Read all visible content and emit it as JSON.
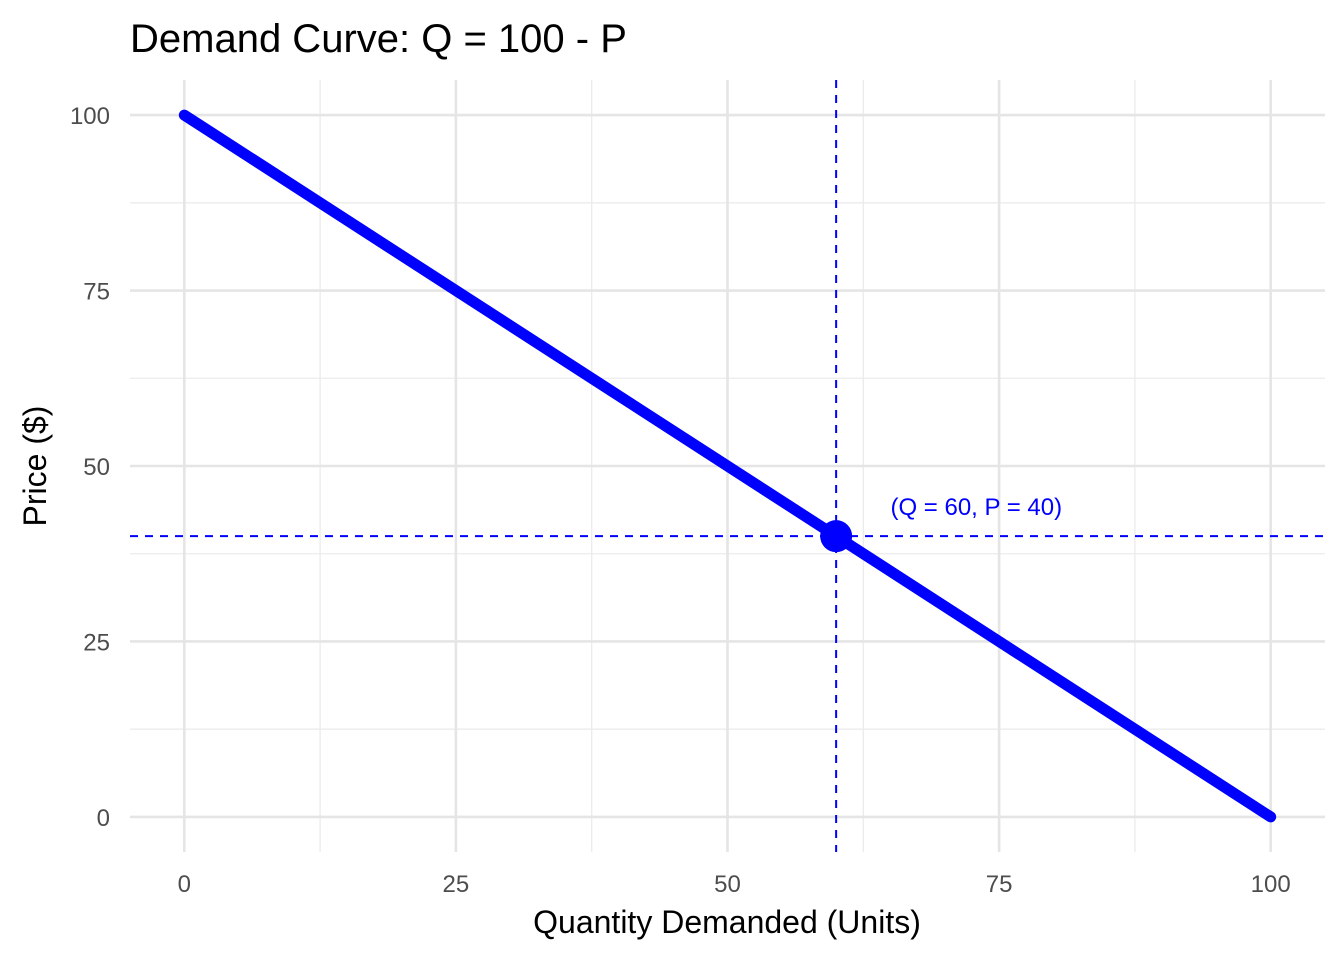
{
  "chart_data": {
    "type": "line",
    "title": "Demand Curve: Q = 100 - P",
    "xlabel": "Quantity Demanded (Units)",
    "ylabel": "Price ($)",
    "xlim": [
      -5,
      105
    ],
    "ylim": [
      -5,
      105
    ],
    "x_ticks": [
      0,
      25,
      50,
      75,
      100
    ],
    "y_ticks": [
      0,
      25,
      50,
      75,
      100
    ],
    "x_minor": [
      12.5,
      37.5,
      62.5,
      87.5
    ],
    "y_minor": [
      12.5,
      37.5,
      62.5,
      87.5
    ],
    "grid": true,
    "series": [
      {
        "x": [
          0,
          100
        ],
        "y": [
          100,
          0
        ],
        "color": "#0000ff"
      }
    ],
    "point": {
      "x": 60,
      "y": 40,
      "color": "#0000ff"
    },
    "reference_lines": {
      "vertical_x": 60,
      "horizontal_y": 40,
      "style": "dashed",
      "color": "#0000ff"
    },
    "annotation": {
      "text": "(Q = 60, P = 40)",
      "x": 65,
      "y": 44,
      "color": "#0000ff"
    }
  }
}
